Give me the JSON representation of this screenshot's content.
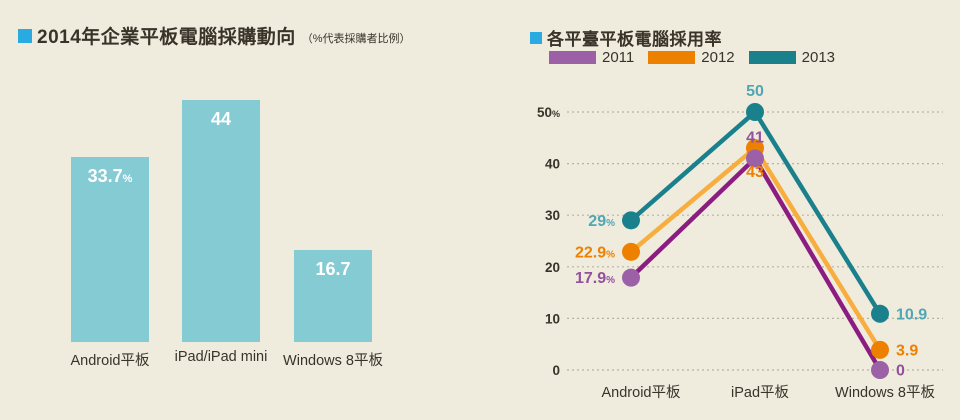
{
  "colors": {
    "background": "#efebdd",
    "title_bullet": "#29abe2",
    "title_text": "#3a332a",
    "bar_fill": "#85cbd4",
    "bar_value_text": "#ffffff",
    "axis_text": "#3a332a",
    "gridline": "#b7b2a4"
  },
  "left_chart": {
    "title": "2014年企業平板電腦採購動向",
    "subtitle": "（%代表採購者比例）",
    "chart_data": {
      "type": "bar",
      "categories": [
        "Android平板",
        "iPad/iPad mini",
        "Windows 8平板"
      ],
      "values": [
        33.7,
        44,
        16.7
      ],
      "value_labels": [
        "33.7%",
        "44",
        "16.7"
      ],
      "unit": "%",
      "title": "2014年企業平板電腦採購動向",
      "xlabel": "",
      "ylabel": "",
      "ylim": [
        0,
        44
      ],
      "grid": false,
      "bar_color": "#85cbd4"
    }
  },
  "right_chart": {
    "title": "各平臺平板電腦採用率",
    "legend": [
      {
        "label": "2011",
        "color": "#9b60a5"
      },
      {
        "label": "2012",
        "color": "#ee8000"
      },
      {
        "label": "2013",
        "color": "#1a808c"
      }
    ],
    "chart_data": {
      "type": "line",
      "categories": [
        "Android平板",
        "iPad平板",
        "Windows 8平板"
      ],
      "series": [
        {
          "name": "2011",
          "values": [
            17.9,
            41,
            0
          ],
          "value_labels": [
            "17.9%",
            "41",
            "0"
          ],
          "line_color": "#8c1d80",
          "marker_color": "#9b60a5",
          "label_color": "#91519c",
          "label_anchors": [
            "left",
            "above",
            "right"
          ]
        },
        {
          "name": "2012",
          "values": [
            22.9,
            43,
            3.9
          ],
          "value_labels": [
            "22.9%",
            "43",
            "3.9"
          ],
          "line_color": "#f7ae3e",
          "marker_color": "#ee8000",
          "label_color": "#ee8000",
          "label_anchors": [
            "left",
            "below",
            "right"
          ]
        },
        {
          "name": "2013",
          "values": [
            29,
            50,
            10.9
          ],
          "value_labels": [
            "29%",
            "50",
            "10.9"
          ],
          "line_color": "#1a808c",
          "marker_color": "#1a808c",
          "label_color": "#4fa7b4",
          "label_anchors": [
            "left",
            "above",
            "right"
          ]
        }
      ],
      "y_ticks": [
        0,
        10,
        20,
        30,
        40,
        50
      ],
      "y_tick_labels": [
        "0",
        "10",
        "20",
        "30",
        "40",
        "50%"
      ],
      "ylim": [
        0,
        50
      ],
      "unit": "%",
      "grid": "horizontal-dotted",
      "legend_position": "top",
      "title": "各平臺平板電腦採用率",
      "xlabel": "",
      "ylabel": ""
    }
  }
}
